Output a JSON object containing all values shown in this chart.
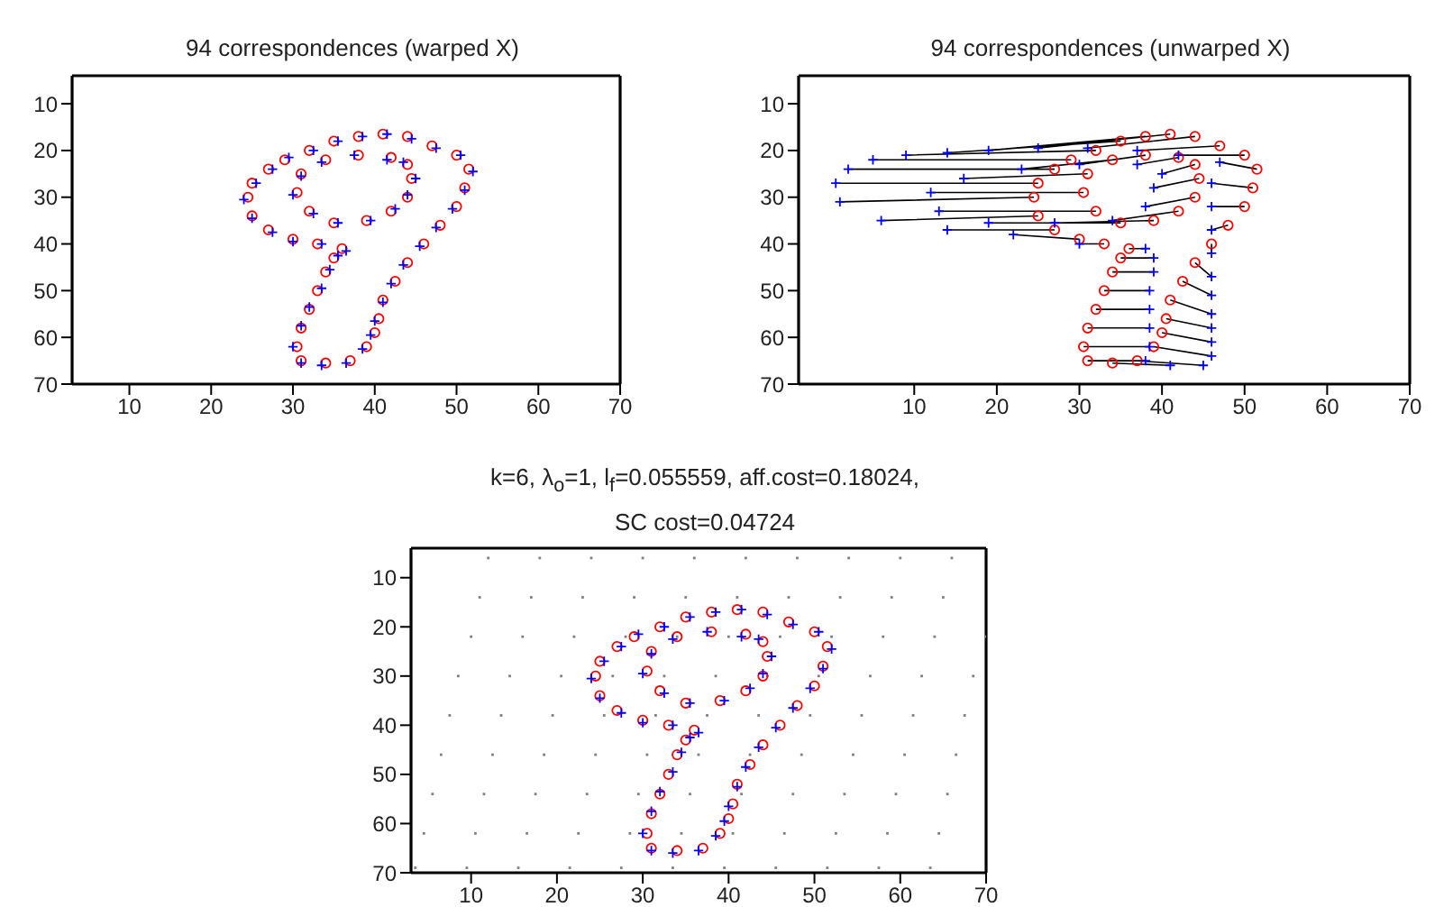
{
  "chart_data": [
    {
      "type": "scatter",
      "title": "94 correspondences (warped X)",
      "xlim": [
        3,
        70
      ],
      "ylim": [
        70,
        4
      ],
      "xticks": [
        10,
        20,
        30,
        40,
        50,
        60,
        70
      ],
      "yticks": [
        10,
        20,
        30,
        40,
        50,
        60,
        70
      ],
      "series": [
        {
          "marker": "circle",
          "color": "#ff0000",
          "x": [
            36,
            33,
            30,
            27,
            25,
            24.5,
            25,
            27,
            29,
            32,
            35,
            38,
            41,
            44,
            47,
            50,
            51.5,
            51,
            50,
            48,
            46,
            44,
            42.5,
            41,
            40.5,
            40,
            39,
            37,
            34,
            31,
            30.5,
            31,
            32,
            33,
            34,
            35,
            42,
            38,
            34,
            31,
            30.5,
            32,
            35,
            39,
            42,
            44,
            44.5,
            44
          ],
          "values": [
            41,
            40,
            39,
            37,
            34,
            30,
            27,
            24,
            22,
            20,
            18,
            17,
            16.5,
            17,
            19,
            21,
            24,
            28,
            32,
            36,
            40,
            44,
            48,
            52,
            56,
            59,
            62,
            65,
            65.5,
            65,
            62,
            58,
            54,
            50,
            46,
            43,
            21.5,
            21,
            22,
            25,
            29,
            33,
            35.5,
            35,
            33,
            30,
            26,
            23
          ]
        },
        {
          "marker": "cross",
          "color": "#0000ff",
          "x": [
            36.5,
            33.5,
            30,
            27.5,
            25,
            24,
            25.5,
            27.5,
            29.5,
            32.5,
            35.5,
            38.5,
            41.5,
            44.5,
            47.5,
            50.5,
            52,
            51,
            49.5,
            47.5,
            45.5,
            43.5,
            42,
            41,
            40,
            39.5,
            38.5,
            36.5,
            33.5,
            31,
            30,
            31,
            32,
            33.5,
            34.5,
            35.5,
            41.5,
            37.5,
            33.5,
            31,
            30,
            32.5,
            35.5,
            39.5,
            42.5,
            44,
            45,
            43.5
          ],
          "values": [
            41.5,
            40,
            39.5,
            37.5,
            34.5,
            30.5,
            27,
            24,
            21.5,
            20,
            18,
            17,
            16.5,
            17.5,
            19.5,
            21,
            24.5,
            28.5,
            32.5,
            36.5,
            40.5,
            44.5,
            48.5,
            52.5,
            56.5,
            59.5,
            62.5,
            65.5,
            66,
            65.5,
            62,
            57.5,
            53.5,
            49.5,
            45.5,
            42.5,
            22,
            21,
            22.5,
            25.5,
            29.5,
            33.5,
            35.5,
            35,
            32.5,
            29.5,
            26,
            22.5
          ]
        }
      ]
    },
    {
      "type": "scatter",
      "title": "94 correspondences (unwarped X)",
      "xlim": [
        -4,
        70
      ],
      "ylim": [
        70,
        4
      ],
      "xticks": [
        10,
        20,
        30,
        40,
        50,
        60,
        70
      ],
      "yticks": [
        10,
        20,
        30,
        40,
        50,
        60,
        70
      ],
      "series": [
        {
          "type": "line",
          "color": "#000000",
          "x": [
            38,
            36,
            null,
            30,
            33,
            null,
            22,
            30,
            null,
            14,
            27,
            null,
            6,
            25,
            null,
            1,
            24.5,
            null,
            0.5,
            25,
            null,
            2,
            27,
            null,
            5,
            29,
            null,
            9,
            32,
            null,
            14,
            35,
            null,
            19,
            38,
            null,
            25,
            41,
            null,
            31,
            44,
            null,
            37,
            47,
            null,
            42,
            50,
            null,
            47,
            51.5,
            null,
            46,
            51,
            null,
            46,
            50,
            null,
            46,
            48,
            null,
            46,
            46,
            null,
            46,
            44,
            null,
            46,
            42.5,
            null,
            46,
            41,
            null,
            46,
            40.5,
            null,
            46,
            40,
            null,
            46,
            39,
            null,
            45,
            37,
            null,
            41,
            34,
            null,
            38,
            31,
            null,
            38.5,
            30.5,
            null,
            38.5,
            31,
            null,
            38.5,
            32,
            null,
            38.5,
            33,
            null,
            39,
            34,
            null,
            39,
            35,
            null,
            37,
            42,
            null,
            30,
            38,
            null,
            23,
            34,
            null,
            16,
            31,
            null,
            12,
            30.5,
            null,
            13,
            32,
            null,
            19,
            35,
            null,
            27,
            39,
            null,
            34,
            42,
            null,
            38,
            44,
            null,
            39,
            44.5,
            null,
            40,
            44,
            null
          ],
          "values": [
            41,
            41,
            null,
            40,
            40,
            null,
            38,
            39,
            null,
            37,
            37,
            null,
            35,
            34,
            null,
            31,
            30,
            null,
            27,
            27,
            null,
            24,
            24,
            null,
            22,
            22,
            null,
            21,
            20,
            null,
            20.5,
            18,
            null,
            20,
            17,
            null,
            19.5,
            16.5,
            null,
            19.5,
            17,
            null,
            20,
            19,
            null,
            21,
            21,
            null,
            22.5,
            24,
            null,
            27,
            28,
            null,
            32,
            32,
            null,
            37,
            36,
            null,
            42,
            40,
            null,
            47,
            44,
            null,
            51,
            48,
            null,
            55,
            52,
            null,
            58,
            56,
            null,
            61,
            59,
            null,
            64,
            62,
            null,
            66,
            65,
            null,
            66,
            65.5,
            null,
            65,
            65,
            null,
            62,
            62,
            null,
            58,
            58,
            null,
            54,
            54,
            null,
            50,
            50,
            null,
            46,
            46,
            null,
            43,
            43,
            null,
            23,
            21.5,
            null,
            23,
            21,
            null,
            24,
            22,
            null,
            26,
            25,
            null,
            29,
            29,
            null,
            33,
            33,
            null,
            35.5,
            35.5,
            null,
            35.5,
            35,
            null,
            35,
            33,
            null,
            32,
            30,
            null,
            28,
            26,
            null,
            25,
            23,
            null
          ]
        },
        {
          "type": "scatter",
          "marker": "circle",
          "color": "#ff0000",
          "x": [
            36,
            33,
            30,
            27,
            25,
            24.5,
            25,
            27,
            29,
            32,
            35,
            38,
            41,
            44,
            47,
            50,
            51.5,
            51,
            50,
            48,
            46,
            44,
            42.5,
            41,
            40.5,
            40,
            39,
            37,
            34,
            31,
            30.5,
            31,
            32,
            33,
            34,
            35,
            42,
            38,
            34,
            31,
            30.5,
            32,
            35,
            39,
            42,
            44,
            44.5,
            44
          ],
          "values": [
            41,
            40,
            39,
            37,
            34,
            30,
            27,
            24,
            22,
            20,
            18,
            17,
            16.5,
            17,
            19,
            21,
            24,
            28,
            32,
            36,
            40,
            44,
            48,
            52,
            56,
            59,
            62,
            65,
            65.5,
            65,
            62,
            58,
            54,
            50,
            46,
            43,
            21.5,
            21,
            22,
            25,
            29,
            33,
            35.5,
            35,
            33,
            30,
            26,
            23
          ]
        },
        {
          "type": "scatter",
          "marker": "cross",
          "color": "#0000ff",
          "x": [
            38,
            30,
            22,
            14,
            6,
            1,
            0.5,
            2,
            5,
            9,
            14,
            19,
            25,
            31,
            37,
            42,
            47,
            46,
            46,
            46,
            46,
            46,
            46,
            46,
            46,
            46,
            46,
            45,
            41,
            38,
            38.5,
            38.5,
            38.5,
            38.5,
            39,
            39,
            37,
            30,
            23,
            16,
            12,
            13,
            19,
            27,
            34,
            38,
            39,
            40
          ],
          "values": [
            41,
            40,
            38,
            37,
            35,
            31,
            27,
            24,
            22,
            21,
            20.5,
            20,
            19.5,
            19.5,
            20,
            21,
            22.5,
            27,
            32,
            37,
            42,
            47,
            51,
            55,
            58,
            61,
            64,
            66,
            66,
            65,
            62,
            58,
            54,
            50,
            46,
            43,
            23,
            23,
            24,
            26,
            29,
            33,
            35.5,
            35.5,
            35,
            32,
            28,
            25
          ]
        }
      ]
    },
    {
      "type": "scatter",
      "title": "k=6, λ$_{o}$=1, l$_{f}$=0.055559, aff.cost=0.18024,",
      "subtitle": "SC cost=0.04724",
      "xlim": [
        3,
        70
      ],
      "ylim": [
        70,
        4
      ],
      "xticks": [
        10,
        20,
        30,
        40,
        50,
        60,
        70
      ],
      "yticks": [
        10,
        20,
        30,
        40,
        50,
        60,
        70
      ],
      "series": [
        {
          "type": "scatter",
          "marker": "square",
          "color": "#808080",
          "x": [
            12,
            18,
            24,
            30,
            36,
            42,
            48,
            54,
            60,
            66,
            11,
            17,
            23,
            29,
            35,
            41,
            47,
            53,
            59,
            65,
            10,
            16,
            22,
            28,
            34,
            40,
            46,
            52,
            58,
            64,
            70,
            8.5,
            14.5,
            20.5,
            26.5,
            32.5,
            38.5,
            44.5,
            50.5,
            56.5,
            62.5,
            68.5,
            7.5,
            13.5,
            19.5,
            25.5,
            31.5,
            37.5,
            43.5,
            49.5,
            55.5,
            61.5,
            67.5,
            6.5,
            12.5,
            18.5,
            24.5,
            30.5,
            36.5,
            42.5,
            48.5,
            54.5,
            60.5,
            66.5,
            5.5,
            11.5,
            17.5,
            23.5,
            29.5,
            35.5,
            41.5,
            47.5,
            53.5,
            59.5,
            65.5,
            4.5,
            10.5,
            16.5,
            22.5,
            28.5,
            34.5,
            40.5,
            46.5,
            52.5,
            58.5,
            64.5,
            3.5,
            9.5,
            15.5,
            21.5,
            27.5,
            33.5,
            39.5,
            45.5,
            51.5,
            57.5,
            63.5
          ],
          "values": [
            6,
            6,
            6,
            6,
            6,
            6,
            6,
            6,
            6,
            6,
            14,
            14,
            14,
            14,
            14,
            14,
            14,
            14,
            14,
            14,
            22,
            22,
            22,
            22,
            22,
            22,
            22,
            22,
            22,
            22,
            22,
            30,
            30,
            30,
            30,
            30,
            30,
            30,
            30,
            30,
            30,
            30,
            38,
            38,
            38,
            38,
            38,
            38,
            38,
            38,
            38,
            38,
            38,
            46,
            46,
            46,
            46,
            46,
            46,
            46,
            46,
            46,
            46,
            46,
            54,
            54,
            54,
            54,
            54,
            54,
            54,
            54,
            54,
            54,
            54,
            62,
            62,
            62,
            62,
            62,
            62,
            62,
            62,
            62,
            62,
            62,
            69,
            69,
            69,
            69,
            69,
            69,
            69,
            69,
            69,
            69,
            69
          ]
        },
        {
          "type": "scatter",
          "marker": "circle",
          "color": "#ff0000",
          "x": [
            36,
            33,
            30,
            27,
            25,
            24.5,
            25,
            27,
            29,
            32,
            35,
            38,
            41,
            44,
            47,
            50,
            51.5,
            51,
            50,
            48,
            46,
            44,
            42.5,
            41,
            40.5,
            40,
            39,
            37,
            34,
            31,
            30.5,
            31,
            32,
            33,
            34,
            35,
            42,
            38,
            34,
            31,
            30.5,
            32,
            35,
            39,
            42,
            44,
            44.5,
            44
          ],
          "values": [
            41,
            40,
            39,
            37,
            34,
            30,
            27,
            24,
            22,
            20,
            18,
            17,
            16.5,
            17,
            19,
            21,
            24,
            28,
            32,
            36,
            40,
            44,
            48,
            52,
            56,
            59,
            62,
            65,
            65.5,
            65,
            62,
            58,
            54,
            50,
            46,
            43,
            21.5,
            21,
            22,
            25,
            29,
            33,
            35.5,
            35,
            33,
            30,
            26,
            23
          ]
        },
        {
          "type": "scatter",
          "marker": "cross",
          "color": "#0000ff",
          "x": [
            36.5,
            33.5,
            30,
            27.5,
            25,
            24,
            25.5,
            27.5,
            29.5,
            32.5,
            35.5,
            38.5,
            41.5,
            44.5,
            47.5,
            50.5,
            52,
            51,
            49.5,
            47.5,
            45.5,
            43.5,
            42,
            41,
            40,
            39.5,
            38.5,
            36.5,
            33.5,
            31,
            30,
            31,
            32,
            33.5,
            34.5,
            35.5,
            41.5,
            37.5,
            33.5,
            31,
            30,
            32.5,
            35.5,
            39.5,
            42.5,
            44,
            45,
            43.5
          ],
          "values": [
            41.5,
            40,
            39.5,
            37.5,
            34.5,
            30.5,
            27,
            24,
            21.5,
            20,
            18,
            17,
            16.5,
            17.5,
            19.5,
            21,
            24.5,
            28.5,
            32.5,
            36.5,
            40.5,
            44.5,
            48.5,
            52.5,
            56.5,
            59.5,
            62.5,
            65.5,
            66,
            65.5,
            62,
            57.5,
            53.5,
            49.5,
            45.5,
            42.5,
            22,
            21,
            22.5,
            25.5,
            29.5,
            33.5,
            35.5,
            35,
            32.5,
            29.5,
            26,
            22.5
          ]
        }
      ]
    }
  ]
}
